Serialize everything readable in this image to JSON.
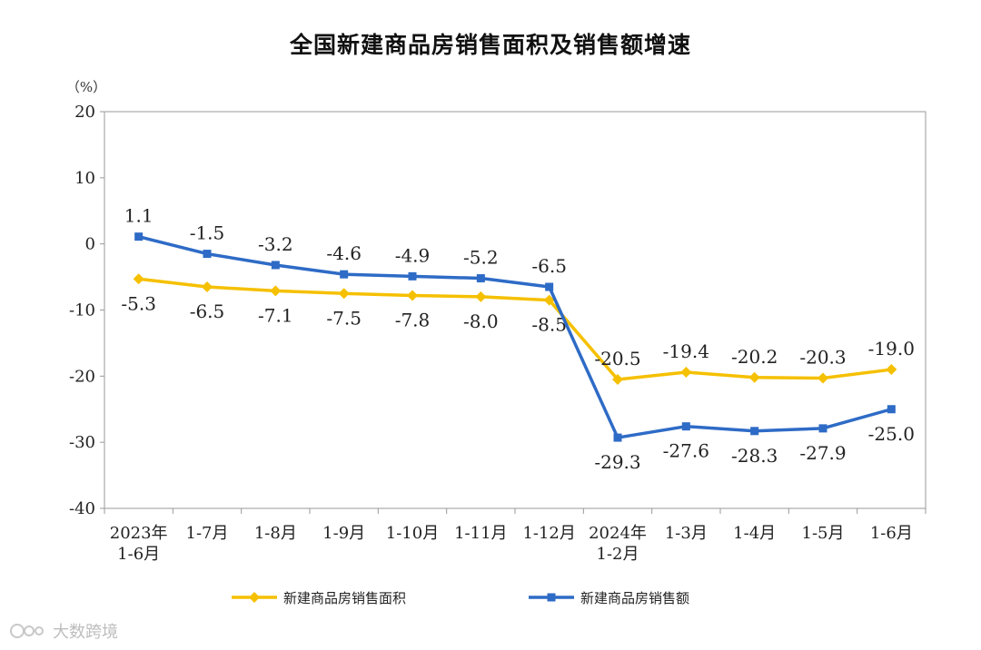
{
  "chart_data": {
    "type": "line",
    "title": "全国新建商品房销售面积及销售额增速",
    "ylabel": "（%）",
    "xlabel": "",
    "ylim": [
      -40,
      20
    ],
    "yticks": [
      "20",
      "10",
      "0",
      "-10",
      "-20",
      "-30",
      "-40"
    ],
    "categories": [
      [
        "2023年",
        "1-6月"
      ],
      [
        "1-7月"
      ],
      [
        "1-8月"
      ],
      [
        "1-9月"
      ],
      [
        "1-10月"
      ],
      [
        "1-11月"
      ],
      [
        "1-12月"
      ],
      [
        "2024年",
        "1-2月"
      ],
      [
        "1-3月"
      ],
      [
        "1-4月"
      ],
      [
        "1-5月"
      ],
      [
        "1-6月"
      ]
    ],
    "series": [
      {
        "name": "新建商品房销售面积",
        "color": "#F5C000",
        "marker": "diamond",
        "values": [
          -5.3,
          -6.5,
          -7.1,
          -7.5,
          -7.8,
          -8.0,
          -8.5,
          -20.5,
          -19.4,
          -20.2,
          -20.3,
          -19.0
        ],
        "labels": [
          "-5.3",
          "-6.5",
          "-7.1",
          "-7.5",
          "-7.8",
          "-8.0",
          "-8.5",
          "-20.5",
          "-19.4",
          "-20.2",
          "-20.3",
          "-19.0"
        ],
        "label_position": [
          "below",
          "below",
          "below",
          "below",
          "below",
          "below",
          "below",
          "above",
          "above",
          "above",
          "above",
          "above"
        ]
      },
      {
        "name": "新建商品房销售额",
        "color": "#2E6BC6",
        "marker": "square",
        "values": [
          1.1,
          -1.5,
          -3.2,
          -4.6,
          -4.9,
          -5.2,
          -6.5,
          -29.3,
          -27.6,
          -28.3,
          -27.9,
          -25.0
        ],
        "labels": [
          "1.1",
          "-1.5",
          "-3.2",
          "-4.6",
          "-4.9",
          "-5.2",
          "-6.5",
          "-29.3",
          "-27.6",
          "-28.3",
          "-27.9",
          "-25.0"
        ],
        "label_position": [
          "above",
          "above",
          "above",
          "above",
          "above",
          "above",
          "above",
          "below",
          "below",
          "below",
          "below",
          "below"
        ]
      }
    ],
    "legend": "bottom"
  },
  "watermark": {
    "text": "大数跨境"
  }
}
